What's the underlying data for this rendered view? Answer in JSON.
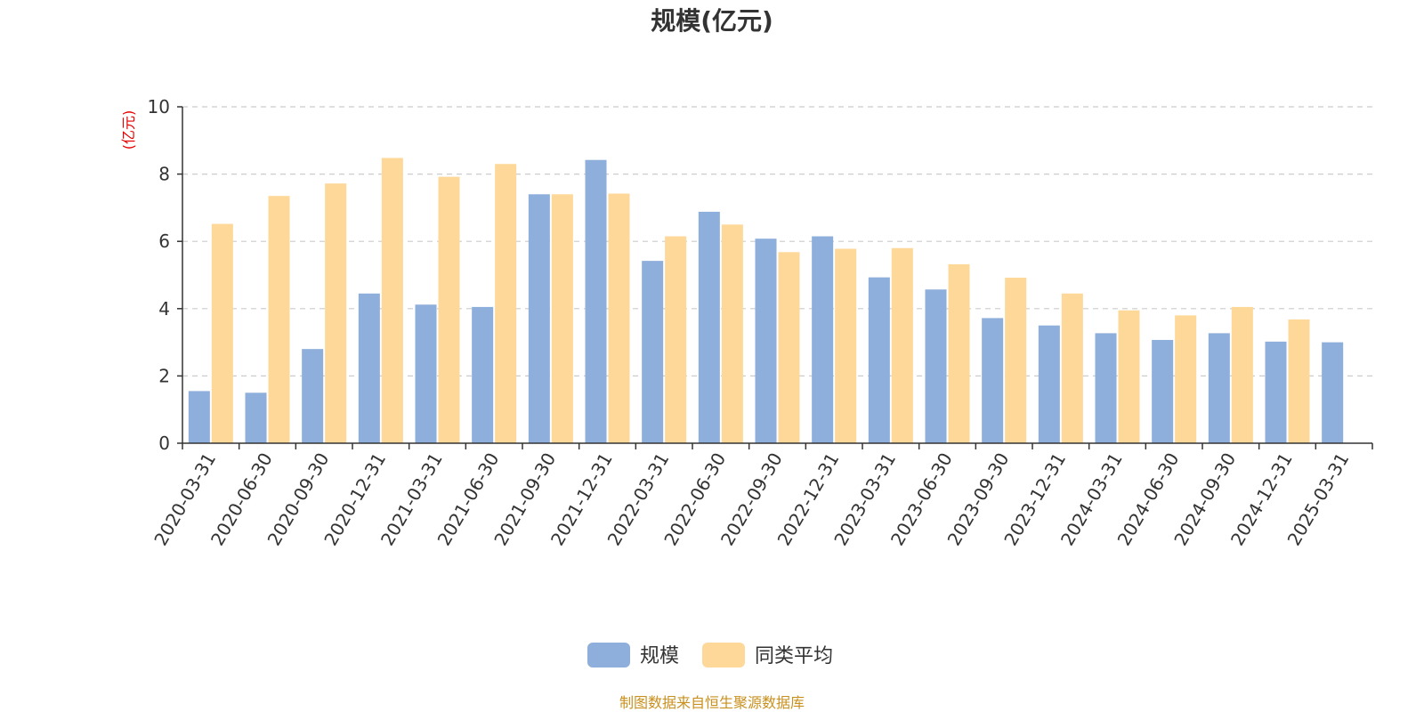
{
  "chart_data": {
    "type": "bar",
    "title": "规模(亿元)",
    "ylabel": "(亿元)",
    "ylim": [
      0,
      10
    ],
    "yticks": [
      0,
      2,
      4,
      6,
      8,
      10
    ],
    "grid": true,
    "legend_position": "bottom-center",
    "categories": [
      "2020-03-31",
      "2020-06-30",
      "2020-09-30",
      "2020-12-31",
      "2021-03-31",
      "2021-06-30",
      "2021-09-30",
      "2021-12-31",
      "2022-03-31",
      "2022-06-30",
      "2022-09-30",
      "2022-12-31",
      "2023-03-31",
      "2023-06-30",
      "2023-09-30",
      "2023-12-31",
      "2024-03-31",
      "2024-06-30",
      "2024-09-30",
      "2024-12-31",
      "2025-03-31"
    ],
    "series": [
      {
        "name": "规模",
        "color": "#8eaedb",
        "values": [
          1.55,
          1.5,
          2.8,
          4.45,
          4.12,
          4.05,
          7.4,
          8.42,
          5.42,
          6.88,
          6.08,
          6.15,
          4.93,
          4.57,
          3.72,
          3.5,
          3.27,
          3.07,
          3.27,
          3.02,
          3.0
        ]
      },
      {
        "name": "同类平均",
        "color": "#fdd898",
        "values": [
          6.52,
          7.35,
          7.72,
          8.48,
          7.92,
          8.3,
          7.4,
          7.42,
          6.15,
          6.5,
          5.68,
          5.78,
          5.8,
          5.32,
          4.92,
          4.45,
          3.95,
          3.8,
          4.05,
          3.68,
          null
        ]
      }
    ],
    "source": "制图数据来自恒生聚源数据库"
  }
}
